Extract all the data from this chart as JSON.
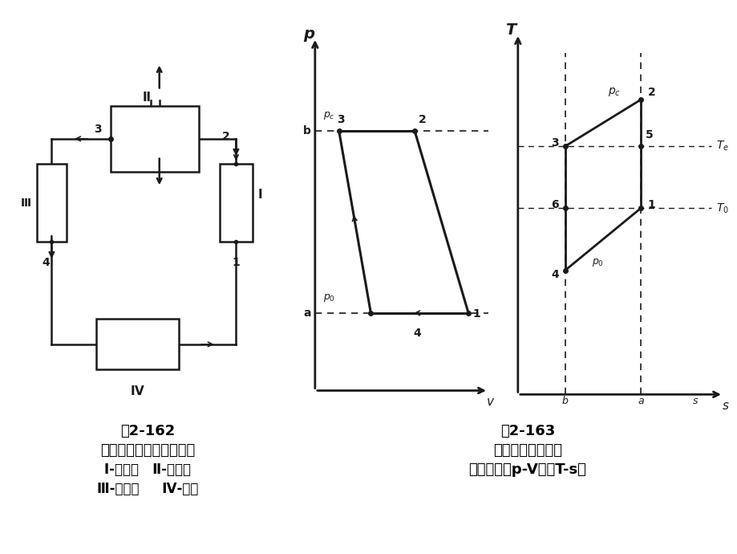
{
  "bg_color": "#ffffff",
  "fig_title1": "图2-162",
  "fig_caption1_line1": "无回热空气制冷机系统图",
  "fig_caption1_line2": "Ⅰ-压缩机   Ⅱ-冷却器",
  "fig_caption1_line3": "Ⅲ-膨胀机     Ⅳ-冷箱",
  "fig_title2": "图2-163",
  "fig_caption2_line1": "无回热空气制冷机",
  "fig_caption2_line2": "理论循环的p-V图与T-s图",
  "line_color": "#1a1a1a"
}
